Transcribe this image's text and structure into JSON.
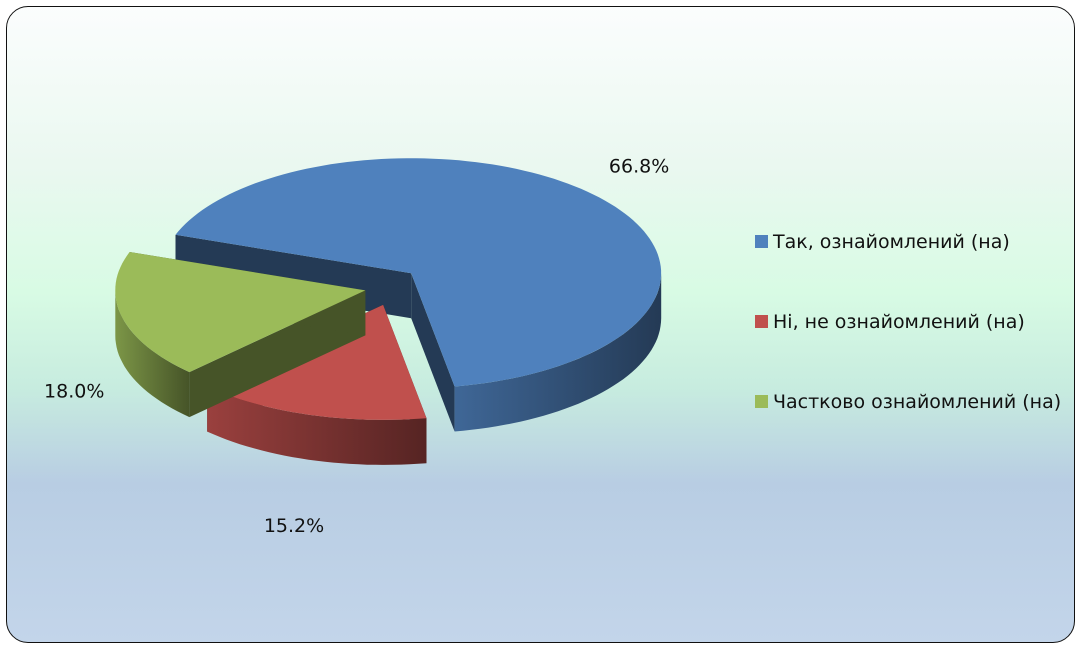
{
  "chart_data": {
    "type": "pie",
    "categories": [
      "Так, ознайомлений (на)",
      "Ні, не ознайомлений (на)",
      "Частково ознайомлений (на)"
    ],
    "values": [
      66.8,
      15.2,
      18.0
    ],
    "value_labels": [
      "66.8%",
      "15.2%",
      "18.0%"
    ],
    "colors": [
      "#4f81bd",
      "#c0504d",
      "#9bbb59"
    ],
    "legend": "right"
  }
}
